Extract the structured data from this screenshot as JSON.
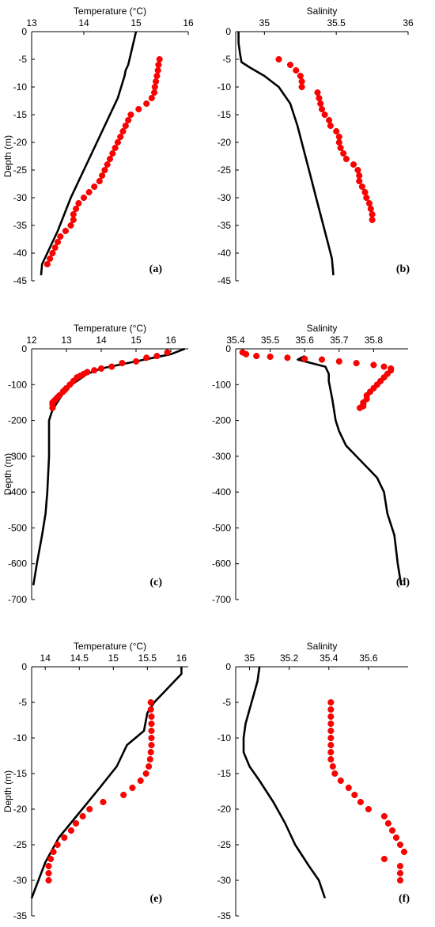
{
  "chart_data": [
    {
      "id": "a",
      "type": "line",
      "panel_label": "(a)",
      "xlabel": "Temperature (°C)",
      "ylabel": "Depth (m)",
      "xlim": [
        13,
        16
      ],
      "ylim": [
        -45,
        0
      ],
      "xticks": [
        13,
        14,
        15,
        16
      ],
      "yticks": [
        0,
        -5,
        -10,
        -15,
        -20,
        -25,
        -30,
        -35,
        -40,
        -45
      ],
      "series": [
        {
          "style": "line",
          "color": "#000000",
          "x": [
            15.0,
            14.95,
            14.9,
            14.85,
            14.8,
            14.78,
            14.65,
            14.35,
            14.05,
            13.75,
            13.5,
            13.3,
            13.2,
            13.18
          ],
          "y": [
            0,
            -2,
            -4,
            -6,
            -7,
            -8,
            -12,
            -18,
            -24,
            -30,
            -36,
            -40,
            -42,
            -44
          ]
        },
        {
          "style": "scatter",
          "color": "#ff0000",
          "x": [
            15.45,
            15.43,
            15.42,
            15.4,
            15.38,
            15.36,
            15.35,
            15.3,
            15.2,
            15.05,
            14.9,
            14.85,
            14.8,
            14.75,
            14.7,
            14.65,
            14.6,
            14.55,
            14.5,
            14.45,
            14.4,
            14.35,
            14.3,
            14.2,
            14.1,
            14.0,
            13.9,
            13.85,
            13.8,
            13.8,
            13.75,
            13.65,
            13.55,
            13.5,
            13.45,
            13.4,
            13.35,
            13.3
          ],
          "y": [
            -5,
            -6,
            -7,
            -8,
            -9,
            -10,
            -11,
            -12,
            -13,
            -14,
            -15,
            -16,
            -17,
            -18,
            -19,
            -20,
            -21,
            -22,
            -23,
            -24,
            -25,
            -26,
            -27,
            -28,
            -29,
            -30,
            -31,
            -32,
            -33,
            -34,
            -35,
            -36,
            -37,
            -38,
            -39,
            -40,
            -41,
            -42
          ]
        }
      ]
    },
    {
      "id": "b",
      "type": "line",
      "panel_label": "(b)",
      "xlabel": "Salinity",
      "ylabel": "",
      "xlim": [
        34.8,
        36
      ],
      "ylim": [
        -45,
        0
      ],
      "xticks": [
        35,
        35.5,
        36
      ],
      "yticks": [
        0,
        -5,
        -10,
        -15,
        -20,
        -25,
        -30,
        -35,
        -40,
        -45
      ],
      "series": [
        {
          "style": "line",
          "color": "#000000",
          "x": [
            34.82,
            34.82,
            34.83,
            34.84,
            34.9,
            35.0,
            35.1,
            35.18,
            35.23,
            35.28,
            35.32,
            35.36,
            35.4,
            35.44,
            35.47,
            35.48
          ],
          "y": [
            0,
            -2,
            -4,
            -5.5,
            -6.5,
            -8,
            -10,
            -13,
            -17,
            -22,
            -26,
            -30,
            -34,
            -38,
            -41,
            -44
          ]
        },
        {
          "style": "scatter",
          "color": "#ff0000",
          "x": [
            35.1,
            35.18,
            35.22,
            35.25,
            35.26,
            35.26,
            35.37,
            35.38,
            35.39,
            35.4,
            35.42,
            35.45,
            35.46,
            35.5,
            35.52,
            35.52,
            35.53,
            35.55,
            35.57,
            35.62,
            35.65,
            35.66,
            35.66,
            35.68,
            35.7,
            35.71,
            35.73,
            35.74,
            35.75,
            35.75
          ],
          "y": [
            -5,
            -6,
            -7,
            -8,
            -9,
            -10,
            -11,
            -12,
            -13,
            -14,
            -15,
            -16,
            -17,
            -18,
            -19,
            -20,
            -21,
            -22,
            -23,
            -24,
            -25,
            -26,
            -27,
            -28,
            -29,
            -30,
            -31,
            -32,
            -33,
            -34
          ]
        }
      ]
    },
    {
      "id": "c",
      "type": "line",
      "panel_label": "(c)",
      "xlabel": "Temperature (°C)",
      "ylabel": "Depth (m)",
      "xlim": [
        12,
        16.5
      ],
      "ylim": [
        -700,
        0
      ],
      "xticks": [
        12,
        13,
        14,
        15,
        16
      ],
      "yticks": [
        0,
        -100,
        -200,
        -300,
        -400,
        -500,
        -600,
        -700
      ],
      "series": [
        {
          "style": "line",
          "color": "#000000",
          "x": [
            16.4,
            16.0,
            15.5,
            15.0,
            14.5,
            14.0,
            13.6,
            13.3,
            13.0,
            12.8,
            12.6,
            12.5,
            12.5,
            12.45,
            12.4,
            12.3,
            12.15,
            12.05
          ],
          "y": [
            0,
            -15,
            -25,
            -35,
            -45,
            -55,
            -70,
            -90,
            -110,
            -140,
            -170,
            -200,
            -300,
            -400,
            -460,
            -520,
            -600,
            -660
          ]
        },
        {
          "style": "scatter",
          "color": "#ff0000",
          "x": [
            15.9,
            15.6,
            15.3,
            15.0,
            14.6,
            14.3,
            14.0,
            13.8,
            13.6,
            13.5,
            13.4,
            13.3,
            13.2,
            13.1,
            13.0,
            12.95,
            12.9,
            12.8,
            12.75,
            12.7,
            12.65,
            12.6,
            12.6,
            12.6
          ],
          "y": [
            -10,
            -20,
            -25,
            -35,
            -40,
            -50,
            -55,
            -60,
            -65,
            -70,
            -75,
            -80,
            -90,
            -100,
            -110,
            -115,
            -120,
            -130,
            -135,
            -140,
            -145,
            -150,
            -155,
            -165
          ]
        }
      ]
    },
    {
      "id": "d",
      "type": "line",
      "panel_label": "(d)",
      "xlabel": "Salinity",
      "ylabel": "",
      "xlim": [
        35.4,
        35.9
      ],
      "ylim": [
        -700,
        0
      ],
      "xticks": [
        35.4,
        35.5,
        35.6,
        35.7,
        35.8
      ],
      "yticks": [
        0,
        -100,
        -200,
        -300,
        -400,
        -500,
        -600,
        -700
      ],
      "series": [
        {
          "style": "line",
          "color": "#000000",
          "x": [
            35.6,
            35.58,
            35.62,
            35.66,
            35.67,
            35.67,
            35.68,
            35.69,
            35.7,
            35.72,
            35.75,
            35.78,
            35.81,
            35.83,
            35.84,
            35.86,
            35.87,
            35.88
          ],
          "y": [
            -20,
            -30,
            -40,
            -50,
            -70,
            -90,
            -140,
            -200,
            -230,
            -270,
            -300,
            -330,
            -360,
            -400,
            -460,
            -520,
            -600,
            -660
          ]
        },
        {
          "style": "scatter",
          "color": "#ff0000",
          "x": [
            35.42,
            35.43,
            35.46,
            35.5,
            35.55,
            35.6,
            35.65,
            35.7,
            35.75,
            35.8,
            35.83,
            35.85,
            35.85,
            35.84,
            35.83,
            35.82,
            35.81,
            35.8,
            35.79,
            35.78,
            35.78,
            35.77,
            35.77,
            35.77,
            35.76
          ],
          "y": [
            -10,
            -15,
            -20,
            -22,
            -25,
            -28,
            -30,
            -35,
            -40,
            -45,
            -50,
            -55,
            -60,
            -70,
            -80,
            -90,
            -100,
            -110,
            -120,
            -130,
            -140,
            -150,
            -155,
            -160,
            -165
          ]
        }
      ]
    },
    {
      "id": "e",
      "type": "line",
      "panel_label": "(e)",
      "xlabel": "Temperature (°C)",
      "ylabel": "Depth (m)",
      "xlim": [
        13.8,
        16.1
      ],
      "ylim": [
        -35,
        0
      ],
      "xticks": [
        14,
        14.5,
        15,
        15.5,
        16
      ],
      "yticks": [
        0,
        -5,
        -10,
        -15,
        -20,
        -25,
        -30,
        -35
      ],
      "series": [
        {
          "style": "line",
          "color": "#000000",
          "x": [
            16.0,
            16.0,
            15.9,
            15.75,
            15.6,
            15.5,
            15.45,
            15.2,
            15.05,
            14.8,
            14.5,
            14.2,
            14.0,
            13.9,
            13.8
          ],
          "y": [
            0,
            -1,
            -2,
            -3.5,
            -5,
            -6.5,
            -9,
            -11,
            -14,
            -17,
            -20.5,
            -24,
            -27.5,
            -30,
            -32.5
          ]
        },
        {
          "style": "scatter",
          "color": "#ff0000",
          "x": [
            15.55,
            15.55,
            15.56,
            15.56,
            15.56,
            15.56,
            15.56,
            15.55,
            15.54,
            15.52,
            15.48,
            15.4,
            15.28,
            15.15,
            14.85,
            14.65,
            14.55,
            14.45,
            14.38,
            14.28,
            14.18,
            14.12,
            14.08,
            14.05,
            14.05,
            14.05
          ],
          "y": [
            -5,
            -6,
            -7,
            -8,
            -9,
            -10,
            -11,
            -12,
            -13,
            -14,
            -15,
            -16,
            -17,
            -18,
            -19,
            -20,
            -21,
            -22,
            -23,
            -24,
            -25,
            -26,
            -27,
            -28,
            -29,
            -30
          ]
        }
      ]
    },
    {
      "id": "f",
      "type": "line",
      "panel_label": "(f)",
      "xlabel": "Salinity",
      "ylabel": "",
      "xlim": [
        34.93,
        35.8
      ],
      "ylim": [
        -35,
        0
      ],
      "xticks": [
        35,
        35.2,
        35.4,
        35.6
      ],
      "yticks": [
        0,
        -5,
        -10,
        -15,
        -20,
        -25,
        -30,
        -35
      ],
      "series": [
        {
          "style": "line",
          "color": "#000000",
          "x": [
            35.05,
            35.04,
            35.02,
            35.0,
            34.98,
            34.97,
            34.97,
            35.0,
            35.05,
            35.12,
            35.18,
            35.23,
            35.3,
            35.35,
            35.38
          ],
          "y": [
            0,
            -2,
            -4,
            -6,
            -8,
            -10,
            -12,
            -14,
            -16,
            -19,
            -22,
            -25,
            -28,
            -30,
            -32.5
          ]
        },
        {
          "style": "scatter",
          "color": "#ff0000",
          "x": [
            35.41,
            35.41,
            35.41,
            35.41,
            35.41,
            35.41,
            35.41,
            35.41,
            35.41,
            35.42,
            35.43,
            35.46,
            35.5,
            35.53,
            35.56,
            35.6,
            35.68,
            35.7,
            35.72,
            35.74,
            35.76,
            35.78,
            35.68,
            35.76,
            35.76,
            35.76
          ],
          "y": [
            -5,
            -6,
            -7,
            -8,
            -9,
            -10,
            -11,
            -12,
            -13,
            -14,
            -15,
            -16,
            -17,
            -18,
            -19,
            -20,
            -21,
            -22,
            -23,
            -24,
            -25,
            -26,
            -27,
            -28,
            -29,
            -30
          ]
        }
      ]
    }
  ]
}
